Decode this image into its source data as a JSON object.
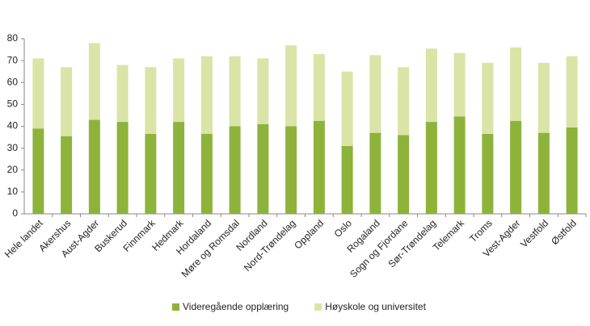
{
  "chart_data": {
    "type": "stacked_bar",
    "categories": [
      "Hele landet",
      "Akershus",
      "Aust-Agder",
      "Buskerud",
      "Finnmark",
      "Hedmark",
      "Hordaland",
      "Møre og Romsdal",
      "Nordland",
      "Nord-Trøndelag",
      "Oppland",
      "Oslo",
      "Rogaland",
      "Sogn og Fjordane",
      "Sør-Trøndelag",
      "Telemark",
      "Troms",
      "Vest-Agder",
      "Vestfold",
      "Østfold"
    ],
    "series": [
      {
        "name": "Videregående opplæring",
        "color": "#8db33a",
        "values": [
          39,
          35.5,
          43,
          42,
          36.5,
          42,
          36.5,
          40,
          41,
          40,
          42.5,
          31,
          37,
          36,
          42,
          44.5,
          36.5,
          42.5,
          37,
          39.5
        ]
      },
      {
        "name": "Høyskole og universitet",
        "color": "#d9e4a6",
        "values": [
          32,
          31.5,
          35,
          26,
          30.5,
          29,
          35.5,
          32,
          30,
          37,
          30.5,
          34,
          35.5,
          31,
          33.5,
          29,
          32.5,
          33.5,
          32,
          32.5
        ]
      }
    ],
    "ylim": [
      0,
      80
    ],
    "yticks": [
      0,
      10,
      20,
      30,
      40,
      50,
      60,
      70,
      80
    ],
    "grid": false,
    "legend": "bottom"
  }
}
